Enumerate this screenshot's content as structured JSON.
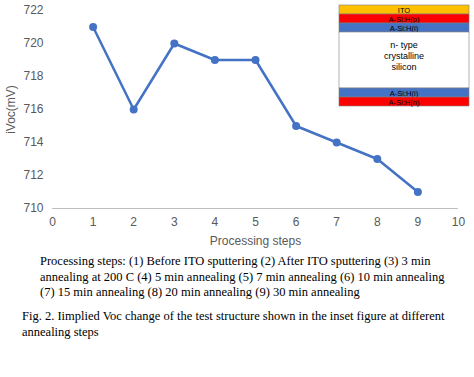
{
  "chart_data": {
    "type": "line",
    "x_label": "Processing steps",
    "y_label": "iVoc(mV)",
    "x": [
      1,
      2,
      3,
      4,
      5,
      6,
      7,
      8,
      9
    ],
    "values": [
      721,
      716,
      720,
      719,
      719,
      715,
      714,
      713,
      711
    ],
    "color": "#4472c4",
    "marker": "circle",
    "xlim": [
      0,
      10
    ],
    "xticks": [
      0,
      1,
      2,
      3,
      4,
      5,
      6,
      7,
      8,
      9,
      10
    ],
    "ylim": [
      710,
      722
    ],
    "yticks": [
      710,
      712,
      714,
      716,
      718,
      720,
      722
    ],
    "grid": false,
    "inset": {
      "layers": [
        {
          "label": "ITO",
          "color": "#ffc000"
        },
        {
          "label": "A-Si:H(p)",
          "color": "#ff0000"
        },
        {
          "label": "A-Si:H(i)",
          "color": "#4472c4"
        },
        {
          "label": "n- type crystalline silicon",
          "color": "#ffffff"
        },
        {
          "label": "A-Si:H(i)",
          "color": "#4472c4"
        },
        {
          "label": "A-Si:H(n)",
          "color": "#ff0000"
        }
      ]
    },
    "captions": [
      "Processing steps: (1) Before ITO sputtering (2) After ITO sputtering (3) 3 min annealing at 200 C (4) 5 min annealing (5) 7 min annealing (6) 10 min annealing (7) 15 min annealing (8) 20 min annealing (9) 30 min annealing",
      "Fig. 2.  Iimplied Voc change of the test structure shown in the inset figure at different annealing steps"
    ]
  }
}
